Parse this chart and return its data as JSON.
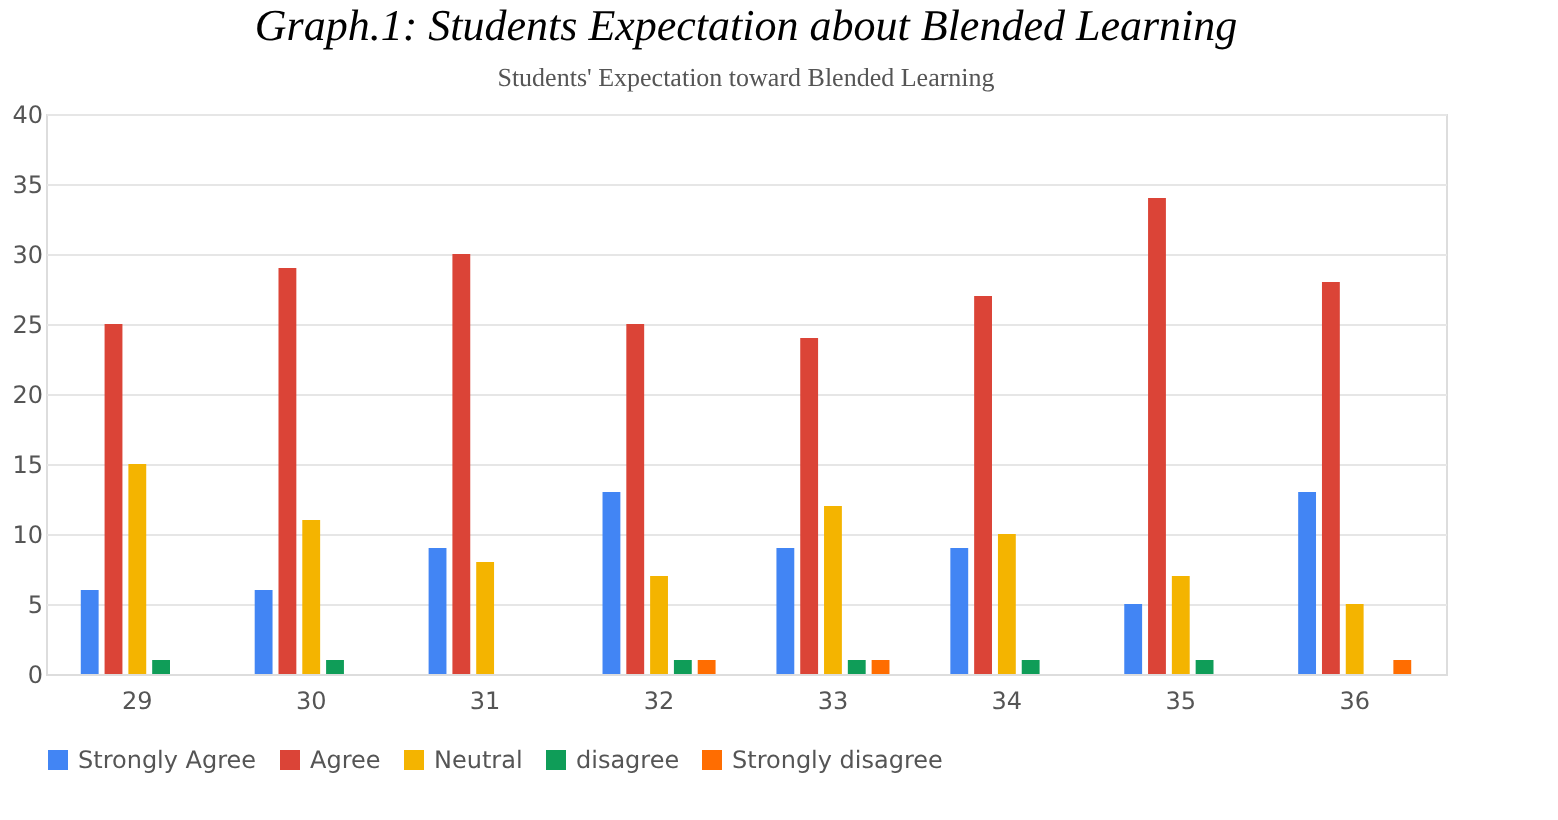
{
  "chart_data": {
    "type": "bar",
    "title": "Graph.1: Students Expectation about Blended Learning",
    "subtitle": "Students' Expectation toward Blended Learning",
    "categories": [
      "29",
      "30",
      "31",
      "32",
      "33",
      "34",
      "35",
      "36"
    ],
    "series": [
      {
        "name": "Strongly Agree",
        "color": "#4285f4",
        "values": [
          6,
          6,
          9,
          13,
          9,
          9,
          5,
          13
        ]
      },
      {
        "name": "Agree",
        "color": "#db4437",
        "values": [
          25,
          29,
          30,
          25,
          24,
          27,
          34,
          28
        ]
      },
      {
        "name": "Neutral",
        "color": "#f4b400",
        "values": [
          15,
          11,
          8,
          7,
          12,
          10,
          7,
          5
        ]
      },
      {
        "name": "disagree",
        "color": "#0f9d58",
        "values": [
          1,
          1,
          0,
          1,
          1,
          1,
          1,
          0
        ]
      },
      {
        "name": "Strongly disagree",
        "color": "#ff6d01",
        "values": [
          0,
          0,
          0,
          1,
          1,
          0,
          0,
          1
        ]
      }
    ],
    "ylim": [
      0,
      40
    ],
    "yticks": [
      0,
      5,
      10,
      15,
      20,
      25,
      30,
      35,
      40
    ],
    "grid": "y",
    "legend": "bottom"
  }
}
